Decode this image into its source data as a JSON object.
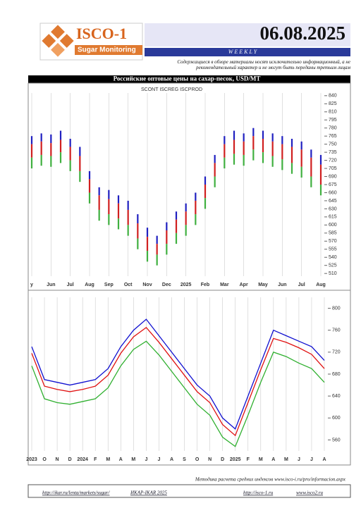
{
  "header": {
    "logo": "ISCO-1",
    "subtitle": "Sugar Monitoring",
    "date": "06.08.2025",
    "frequency": "WEEKLY",
    "disclaimer": "Содержащиеся в обзоре материалы носят исключительно информационный, а не рекомендательный характер и не могут быть переданы третьим лицам"
  },
  "chart_data": [
    {
      "type": "hilo",
      "title": "Российские оптовые цены на сахар-песок, USD/MT",
      "subtitle": "SCONT  ISCREG  ISCPROD",
      "categories": [
        "y",
        null,
        "Jun",
        null,
        "Jul",
        null,
        "Aug",
        null,
        "Sep",
        null,
        "Oct",
        null,
        "Nov",
        null,
        "Dec",
        null,
        "2025",
        null,
        "Feb",
        null,
        "Mar",
        null,
        "Apr",
        null,
        "May",
        null,
        "Jun",
        null,
        "Jul",
        null,
        "Aug"
      ],
      "series": [
        {
          "name": "SCONT",
          "color": "#2020c0",
          "values": [
            765,
            770,
            768,
            775,
            760,
            745,
            700,
            670,
            665,
            655,
            645,
            620,
            595,
            580,
            605,
            625,
            640,
            660,
            690,
            730,
            765,
            775,
            770,
            780,
            775,
            770,
            765,
            760,
            755,
            740,
            730
          ]
        },
        {
          "name": "ISCREG",
          "color": "#d02020",
          "values": [
            750,
            755,
            752,
            758,
            745,
            728,
            685,
            655,
            648,
            640,
            628,
            603,
            578,
            565,
            590,
            610,
            625,
            645,
            675,
            715,
            750,
            758,
            755,
            765,
            760,
            755,
            750,
            745,
            740,
            725,
            712
          ]
        },
        {
          "name": "ISCPROD",
          "color": "#40b040",
          "values": [
            725,
            730,
            728,
            735,
            720,
            700,
            660,
            628,
            620,
            612,
            600,
            575,
            552,
            545,
            565,
            585,
            600,
            620,
            650,
            690,
            725,
            732,
            730,
            740,
            735,
            728,
            722,
            715,
            708,
            690,
            675
          ]
        }
      ],
      "ylim": [
        505,
        845
      ],
      "yticks": [
        510,
        525,
        540,
        555,
        570,
        585,
        600,
        615,
        630,
        645,
        660,
        675,
        690,
        705,
        720,
        735,
        750,
        765,
        780,
        795,
        810,
        825,
        840
      ]
    },
    {
      "type": "line",
      "categories": [
        "2023",
        "O",
        "N",
        "D",
        "2024",
        "F",
        "M",
        "A",
        "M",
        "J",
        "J",
        "A",
        "S",
        "O",
        "N",
        "D",
        "2025",
        "F",
        "M",
        "A",
        "M",
        "J",
        "J",
        "A"
      ],
      "series": [
        {
          "color": "#1010d0",
          "values": [
            730,
            670,
            665,
            660,
            665,
            670,
            690,
            730,
            760,
            780,
            750,
            720,
            690,
            660,
            640,
            600,
            580,
            640,
            700,
            760,
            750,
            740,
            730,
            705
          ]
        },
        {
          "color": "#e01010",
          "values": [
            718,
            658,
            652,
            648,
            652,
            658,
            678,
            718,
            748,
            765,
            738,
            708,
            678,
            648,
            628,
            588,
            568,
            628,
            688,
            745,
            738,
            728,
            716,
            690
          ]
        },
        {
          "color": "#30b030",
          "values": [
            695,
            635,
            628,
            625,
            630,
            635,
            655,
            695,
            725,
            740,
            715,
            685,
            655,
            625,
            605,
            565,
            548,
            605,
            665,
            720,
            712,
            700,
            690,
            665
          ]
        }
      ],
      "ylim": [
        540,
        820
      ],
      "yticks": [
        560,
        600,
        640,
        680,
        720,
        760,
        800
      ]
    }
  ],
  "footer": {
    "method": "Методика расчета средних индексов www.isco-i.ru/pro/informacion.aspx",
    "links": [
      "http://ikar.ru/lenta/markets/sugar/",
      "ИКАР-IKAR 2025",
      "http://isco-1.ru",
      "www.isco2.ru"
    ]
  }
}
